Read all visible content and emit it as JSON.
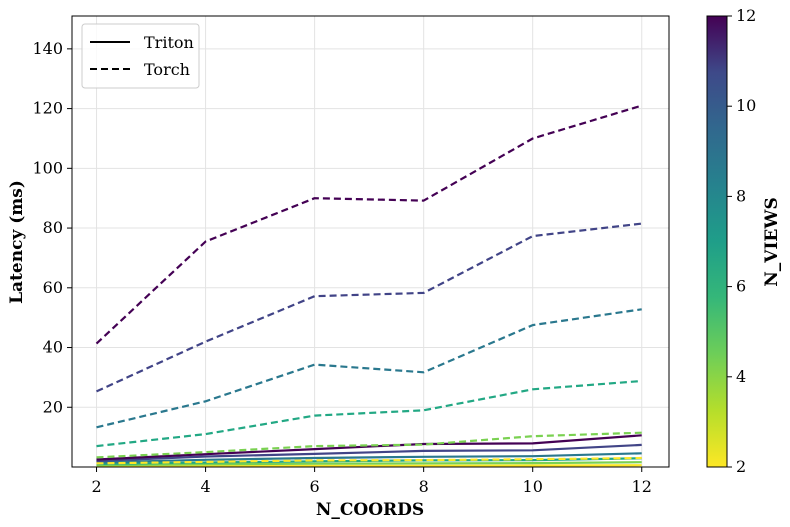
{
  "chart_data": {
    "type": "line",
    "xlabel": "N_COORDS",
    "ylabel": "Latency (ms)",
    "x": [
      2,
      4,
      6,
      8,
      10,
      12
    ],
    "xticks": [
      2,
      4,
      6,
      8,
      10,
      12
    ],
    "xlim": [
      1.55,
      12.5
    ],
    "yticks": [
      20,
      40,
      60,
      80,
      100,
      120,
      140
    ],
    "ylim": [
      0,
      151
    ],
    "grid": true,
    "legend": {
      "placement": "upper-left",
      "entries": [
        {
          "label": "Triton",
          "style": "solid"
        },
        {
          "label": "Torch",
          "style": "dashed"
        }
      ]
    },
    "colorbar": {
      "label": "N_VIEWS",
      "colormap": "viridis",
      "range": [
        2,
        12
      ],
      "ticks": [
        2,
        4,
        6,
        8,
        10,
        12
      ]
    },
    "series": [
      {
        "n_views": 2,
        "style": "solid",
        "color": "#fde725",
        "values": [
          0.2,
          0.3,
          0.4,
          0.4,
          0.5,
          0.6
        ]
      },
      {
        "n_views": 4,
        "style": "solid",
        "color": "#7ad151",
        "values": [
          0.6,
          0.9,
          1.1,
          1.2,
          1.3,
          1.6
        ]
      },
      {
        "n_views": 6,
        "style": "solid",
        "color": "#22a884",
        "values": [
          1.0,
          1.5,
          1.9,
          2.2,
          2.3,
          2.9
        ]
      },
      {
        "n_views": 8,
        "style": "solid",
        "color": "#2a788e",
        "values": [
          1.5,
          2.4,
          3.0,
          3.4,
          3.6,
          4.6
        ]
      },
      {
        "n_views": 10,
        "style": "solid",
        "color": "#414487",
        "values": [
          2.0,
          3.5,
          4.4,
          5.4,
          5.6,
          7.4
        ]
      },
      {
        "n_views": 12,
        "style": "solid",
        "color": "#440154",
        "values": [
          2.5,
          4.3,
          6.0,
          7.7,
          7.9,
          10.6
        ]
      },
      {
        "n_views": 2,
        "style": "dashed",
        "color": "#fde725",
        "values": [
          1.2,
          1.7,
          2.2,
          2.3,
          2.6,
          3.0
        ]
      },
      {
        "n_views": 4,
        "style": "dashed",
        "color": "#7ad151",
        "values": [
          3.2,
          5.0,
          7.0,
          7.5,
          10.3,
          11.5
        ]
      },
      {
        "n_views": 6,
        "style": "dashed",
        "color": "#22a884",
        "values": [
          7.0,
          11.0,
          17.2,
          19.0,
          26.0,
          28.8
        ]
      },
      {
        "n_views": 8,
        "style": "dashed",
        "color": "#2a788e",
        "values": [
          13.3,
          22.0,
          34.3,
          31.7,
          47.5,
          52.8
        ]
      },
      {
        "n_views": 10,
        "style": "dashed",
        "color": "#414487",
        "values": [
          25.3,
          42.0,
          57.2,
          58.3,
          77.3,
          81.5
        ]
      },
      {
        "n_views": 12,
        "style": "dashed",
        "color": "#440154",
        "values": [
          41.3,
          75.5,
          90.0,
          89.2,
          110.0,
          121.0
        ]
      }
    ]
  }
}
